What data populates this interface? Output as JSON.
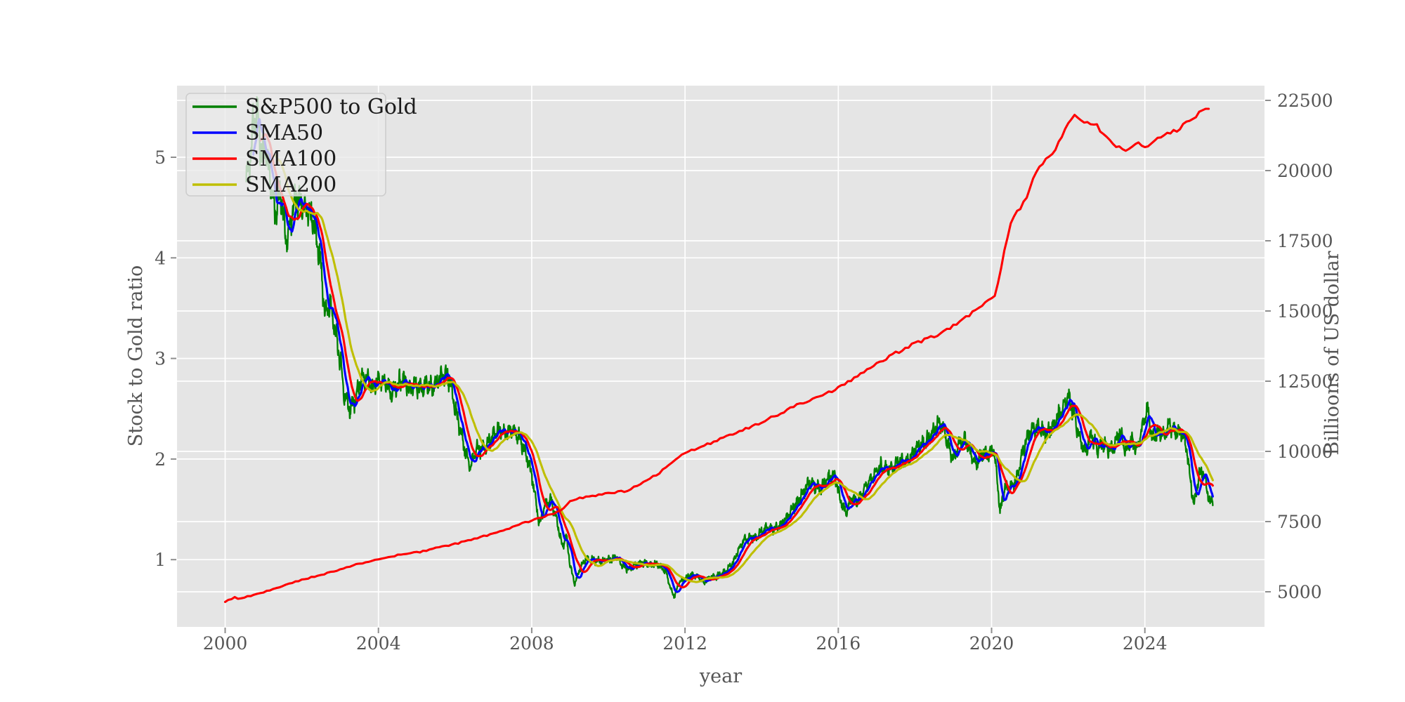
{
  "figure": {
    "bg": "#ffffff",
    "plot_bg": "#e5e5e5",
    "grid_color": "#ffffff",
    "tick_color": "#555555",
    "tick_mark_color": "#8e8e8e",
    "label_color": "#555555",
    "legend_bg": "#eaeaea",
    "legend_border": "#cccccc",
    "legend_text_color": "#1c1c1c"
  },
  "chart_data": {
    "type": "line",
    "title": "",
    "xlabel": "year",
    "ylabel_left": "Stock to Gold ratio",
    "ylabel_right": "Billioons of US dollar",
    "x_ticks": [
      2000,
      2004,
      2008,
      2012,
      2016,
      2020,
      2024
    ],
    "y_left_ticks": [
      1,
      2,
      3,
      4,
      5
    ],
    "y_right_ticks": [
      5000,
      7500,
      10000,
      12500,
      15000,
      17500,
      20000,
      22500
    ],
    "xlim": [
      1998.75,
      2027.15
    ],
    "ylim_left": [
      0.33,
      5.72
    ],
    "ylim_right": [
      3750,
      23160
    ],
    "grid": true,
    "legend_position": "upper-left",
    "legend": [
      {
        "label": "S&P500 to Gold",
        "color": "#008000"
      },
      {
        "label": "SMA50",
        "color": "#0000ff"
      },
      {
        "label": "SMA100",
        "color": "#ff0000"
      },
      {
        "label": "SMA200",
        "color": "#bfbf00"
      }
    ],
    "series": {
      "ratio": {
        "name": "S&P500 to Gold",
        "color": "#008000",
        "axis": "left",
        "anchors": [
          [
            2000.55,
            4.75
          ],
          [
            2000.65,
            5.0
          ],
          [
            2000.75,
            5.35
          ],
          [
            2000.85,
            5.45
          ],
          [
            2000.95,
            5.0
          ],
          [
            2001.05,
            5.1
          ],
          [
            2001.15,
            4.85
          ],
          [
            2001.3,
            4.45
          ],
          [
            2001.45,
            4.65
          ],
          [
            2001.6,
            4.15
          ],
          [
            2001.7,
            4.35
          ],
          [
            2001.85,
            4.6
          ],
          [
            2002.0,
            4.5
          ],
          [
            2002.2,
            4.45
          ],
          [
            2002.35,
            4.3
          ],
          [
            2002.5,
            3.9
          ],
          [
            2002.6,
            3.45
          ],
          [
            2002.75,
            3.55
          ],
          [
            2002.85,
            3.3
          ],
          [
            2003.0,
            3.0
          ],
          [
            2003.1,
            2.65
          ],
          [
            2003.25,
            2.5
          ],
          [
            2003.4,
            2.6
          ],
          [
            2003.55,
            2.8
          ],
          [
            2003.7,
            2.8
          ],
          [
            2003.85,
            2.72
          ],
          [
            2004.0,
            2.78
          ],
          [
            2004.2,
            2.75
          ],
          [
            2004.35,
            2.65
          ],
          [
            2004.5,
            2.75
          ],
          [
            2004.65,
            2.8
          ],
          [
            2004.8,
            2.7
          ],
          [
            2004.95,
            2.75
          ],
          [
            2005.1,
            2.7
          ],
          [
            2005.25,
            2.75
          ],
          [
            2005.4,
            2.7
          ],
          [
            2005.55,
            2.78
          ],
          [
            2005.7,
            2.85
          ],
          [
            2005.85,
            2.8
          ],
          [
            2005.95,
            2.6
          ],
          [
            2006.1,
            2.35
          ],
          [
            2006.25,
            2.1
          ],
          [
            2006.4,
            1.92
          ],
          [
            2006.55,
            2.1
          ],
          [
            2006.7,
            2.1
          ],
          [
            2006.85,
            2.15
          ],
          [
            2007.0,
            2.25
          ],
          [
            2007.15,
            2.3
          ],
          [
            2007.3,
            2.25
          ],
          [
            2007.5,
            2.3
          ],
          [
            2007.7,
            2.2
          ],
          [
            2007.85,
            2.05
          ],
          [
            2008.0,
            1.85
          ],
          [
            2008.1,
            1.6
          ],
          [
            2008.2,
            1.35
          ],
          [
            2008.35,
            1.55
          ],
          [
            2008.5,
            1.6
          ],
          [
            2008.65,
            1.4
          ],
          [
            2008.8,
            1.12
          ],
          [
            2008.9,
            1.25
          ],
          [
            2009.0,
            0.95
          ],
          [
            2009.12,
            0.76
          ],
          [
            2009.25,
            0.9
          ],
          [
            2009.4,
            1.0
          ],
          [
            2009.6,
            1.0
          ],
          [
            2009.8,
            0.98
          ],
          [
            2010.0,
            1.0
          ],
          [
            2010.2,
            1.03
          ],
          [
            2010.4,
            0.93
          ],
          [
            2010.55,
            0.9
          ],
          [
            2010.7,
            0.95
          ],
          [
            2010.9,
            0.97
          ],
          [
            2011.1,
            0.95
          ],
          [
            2011.3,
            0.95
          ],
          [
            2011.5,
            0.88
          ],
          [
            2011.62,
            0.72
          ],
          [
            2011.72,
            0.63
          ],
          [
            2011.85,
            0.78
          ],
          [
            2012.0,
            0.81
          ],
          [
            2012.15,
            0.85
          ],
          [
            2012.3,
            0.84
          ],
          [
            2012.5,
            0.77
          ],
          [
            2012.65,
            0.83
          ],
          [
            2012.8,
            0.83
          ],
          [
            2012.95,
            0.86
          ],
          [
            2013.1,
            0.9
          ],
          [
            2013.25,
            0.97
          ],
          [
            2013.4,
            1.1
          ],
          [
            2013.55,
            1.2
          ],
          [
            2013.7,
            1.22
          ],
          [
            2013.85,
            1.22
          ],
          [
            2014.0,
            1.28
          ],
          [
            2014.15,
            1.32
          ],
          [
            2014.3,
            1.3
          ],
          [
            2014.5,
            1.35
          ],
          [
            2014.65,
            1.42
          ],
          [
            2014.8,
            1.5
          ],
          [
            2014.95,
            1.58
          ],
          [
            2015.1,
            1.68
          ],
          [
            2015.25,
            1.77
          ],
          [
            2015.4,
            1.73
          ],
          [
            2015.55,
            1.7
          ],
          [
            2015.7,
            1.8
          ],
          [
            2015.9,
            1.85
          ],
          [
            2016.05,
            1.6
          ],
          [
            2016.2,
            1.46
          ],
          [
            2016.35,
            1.62
          ],
          [
            2016.5,
            1.58
          ],
          [
            2016.65,
            1.68
          ],
          [
            2016.8,
            1.78
          ],
          [
            2016.95,
            1.85
          ],
          [
            2017.1,
            1.93
          ],
          [
            2017.3,
            1.9
          ],
          [
            2017.45,
            1.92
          ],
          [
            2017.6,
            2.0
          ],
          [
            2017.75,
            1.97
          ],
          [
            2017.9,
            2.03
          ],
          [
            2018.05,
            2.12
          ],
          [
            2018.2,
            2.15
          ],
          [
            2018.35,
            2.2
          ],
          [
            2018.5,
            2.28
          ],
          [
            2018.65,
            2.38
          ],
          [
            2018.75,
            2.3
          ],
          [
            2018.9,
            2.1
          ],
          [
            2019.0,
            2.0
          ],
          [
            2019.15,
            2.15
          ],
          [
            2019.3,
            2.2
          ],
          [
            2019.45,
            2.05
          ],
          [
            2019.6,
            1.95
          ],
          [
            2019.75,
            2.05
          ],
          [
            2019.9,
            2.05
          ],
          [
            2020.05,
            2.1
          ],
          [
            2020.15,
            1.8
          ],
          [
            2020.22,
            1.47
          ],
          [
            2020.35,
            1.72
          ],
          [
            2020.5,
            1.72
          ],
          [
            2020.65,
            1.8
          ],
          [
            2020.8,
            2.05
          ],
          [
            2020.95,
            2.25
          ],
          [
            2021.1,
            2.3
          ],
          [
            2021.25,
            2.3
          ],
          [
            2021.4,
            2.25
          ],
          [
            2021.55,
            2.3
          ],
          [
            2021.7,
            2.4
          ],
          [
            2021.85,
            2.5
          ],
          [
            2022.0,
            2.62
          ],
          [
            2022.15,
            2.45
          ],
          [
            2022.3,
            2.2
          ],
          [
            2022.45,
            2.05
          ],
          [
            2022.6,
            2.25
          ],
          [
            2022.75,
            2.1
          ],
          [
            2022.9,
            2.15
          ],
          [
            2023.05,
            2.1
          ],
          [
            2023.2,
            2.12
          ],
          [
            2023.35,
            2.28
          ],
          [
            2023.5,
            2.08
          ],
          [
            2023.65,
            2.2
          ],
          [
            2023.8,
            2.1
          ],
          [
            2023.95,
            2.35
          ],
          [
            2024.07,
            2.5
          ],
          [
            2024.2,
            2.18
          ],
          [
            2024.35,
            2.3
          ],
          [
            2024.5,
            2.22
          ],
          [
            2024.65,
            2.35
          ],
          [
            2024.8,
            2.25
          ],
          [
            2024.95,
            2.28
          ],
          [
            2025.1,
            2.1
          ],
          [
            2025.18,
            1.8
          ],
          [
            2025.28,
            1.55
          ],
          [
            2025.42,
            1.85
          ],
          [
            2025.52,
            1.88
          ],
          [
            2025.62,
            1.7
          ],
          [
            2025.7,
            1.55
          ],
          [
            2025.78,
            1.62
          ]
        ],
        "noise": {
          "seed": 20,
          "rel_fast": 0.013,
          "waves": [
            [
              46,
              0.02
            ],
            [
              115,
              0.013
            ],
            [
              260,
              0.009
            ]
          ]
        }
      },
      "smas": [
        {
          "name": "SMA50",
          "days": 50,
          "color": "#0000ff",
          "axis": "left"
        },
        {
          "name": "SMA100",
          "days": 100,
          "color": "#ff0000",
          "axis": "left"
        },
        {
          "name": "SMA200",
          "days": 200,
          "color": "#bfbf00",
          "axis": "left"
        }
      ],
      "money_supply": {
        "name": "Billioons of US dollar",
        "color": "#ff0000",
        "axis": "right",
        "anchors": [
          [
            2000.0,
            4650
          ],
          [
            2000.25,
            4800
          ],
          [
            2000.35,
            4730
          ],
          [
            2000.5,
            4800
          ],
          [
            2001.0,
            4980
          ],
          [
            2001.5,
            5200
          ],
          [
            2002.0,
            5430
          ],
          [
            2002.5,
            5600
          ],
          [
            2003.0,
            5800
          ],
          [
            2003.5,
            6000
          ],
          [
            2004.0,
            6150
          ],
          [
            2004.5,
            6300
          ],
          [
            2005.0,
            6400
          ],
          [
            2005.5,
            6550
          ],
          [
            2006.0,
            6700
          ],
          [
            2006.5,
            6880
          ],
          [
            2007.0,
            7080
          ],
          [
            2007.5,
            7300
          ],
          [
            2008.0,
            7550
          ],
          [
            2008.5,
            7750
          ],
          [
            2008.8,
            7950
          ],
          [
            2009.0,
            8250
          ],
          [
            2009.3,
            8350
          ],
          [
            2009.6,
            8400
          ],
          [
            2010.0,
            8500
          ],
          [
            2010.5,
            8600
          ],
          [
            2011.0,
            8950
          ],
          [
            2011.5,
            9400
          ],
          [
            2012.0,
            9950
          ],
          [
            2012.5,
            10200
          ],
          [
            2013.0,
            10500
          ],
          [
            2013.5,
            10750
          ],
          [
            2014.0,
            11050
          ],
          [
            2014.5,
            11350
          ],
          [
            2015.0,
            11700
          ],
          [
            2015.5,
            11950
          ],
          [
            2016.0,
            12250
          ],
          [
            2016.5,
            12700
          ],
          [
            2017.0,
            13100
          ],
          [
            2017.5,
            13500
          ],
          [
            2018.0,
            13850
          ],
          [
            2018.5,
            14100
          ],
          [
            2019.0,
            14450
          ],
          [
            2019.5,
            14950
          ],
          [
            2019.9,
            15350
          ],
          [
            2020.1,
            15500
          ],
          [
            2020.2,
            16200
          ],
          [
            2020.35,
            17300
          ],
          [
            2020.5,
            18150
          ],
          [
            2020.7,
            18600
          ],
          [
            2020.9,
            19000
          ],
          [
            2021.1,
            19700
          ],
          [
            2021.3,
            20200
          ],
          [
            2021.6,
            20650
          ],
          [
            2021.9,
            21400
          ],
          [
            2022.15,
            21950
          ],
          [
            2022.3,
            21850
          ],
          [
            2022.5,
            21700
          ],
          [
            2022.7,
            21650
          ],
          [
            2022.9,
            21350
          ],
          [
            2023.1,
            21100
          ],
          [
            2023.3,
            20850
          ],
          [
            2023.5,
            20700
          ],
          [
            2023.7,
            20850
          ],
          [
            2023.85,
            21000
          ],
          [
            2024.0,
            20850
          ],
          [
            2024.15,
            20950
          ],
          [
            2024.3,
            21100
          ],
          [
            2024.5,
            21200
          ],
          [
            2024.7,
            21350
          ],
          [
            2024.9,
            21500
          ],
          [
            2025.1,
            21700
          ],
          [
            2025.3,
            21950
          ],
          [
            2025.5,
            22100
          ],
          [
            2025.7,
            22320
          ]
        ],
        "noise": {
          "seed": 9,
          "rel_fast": 0.004
        }
      }
    }
  }
}
